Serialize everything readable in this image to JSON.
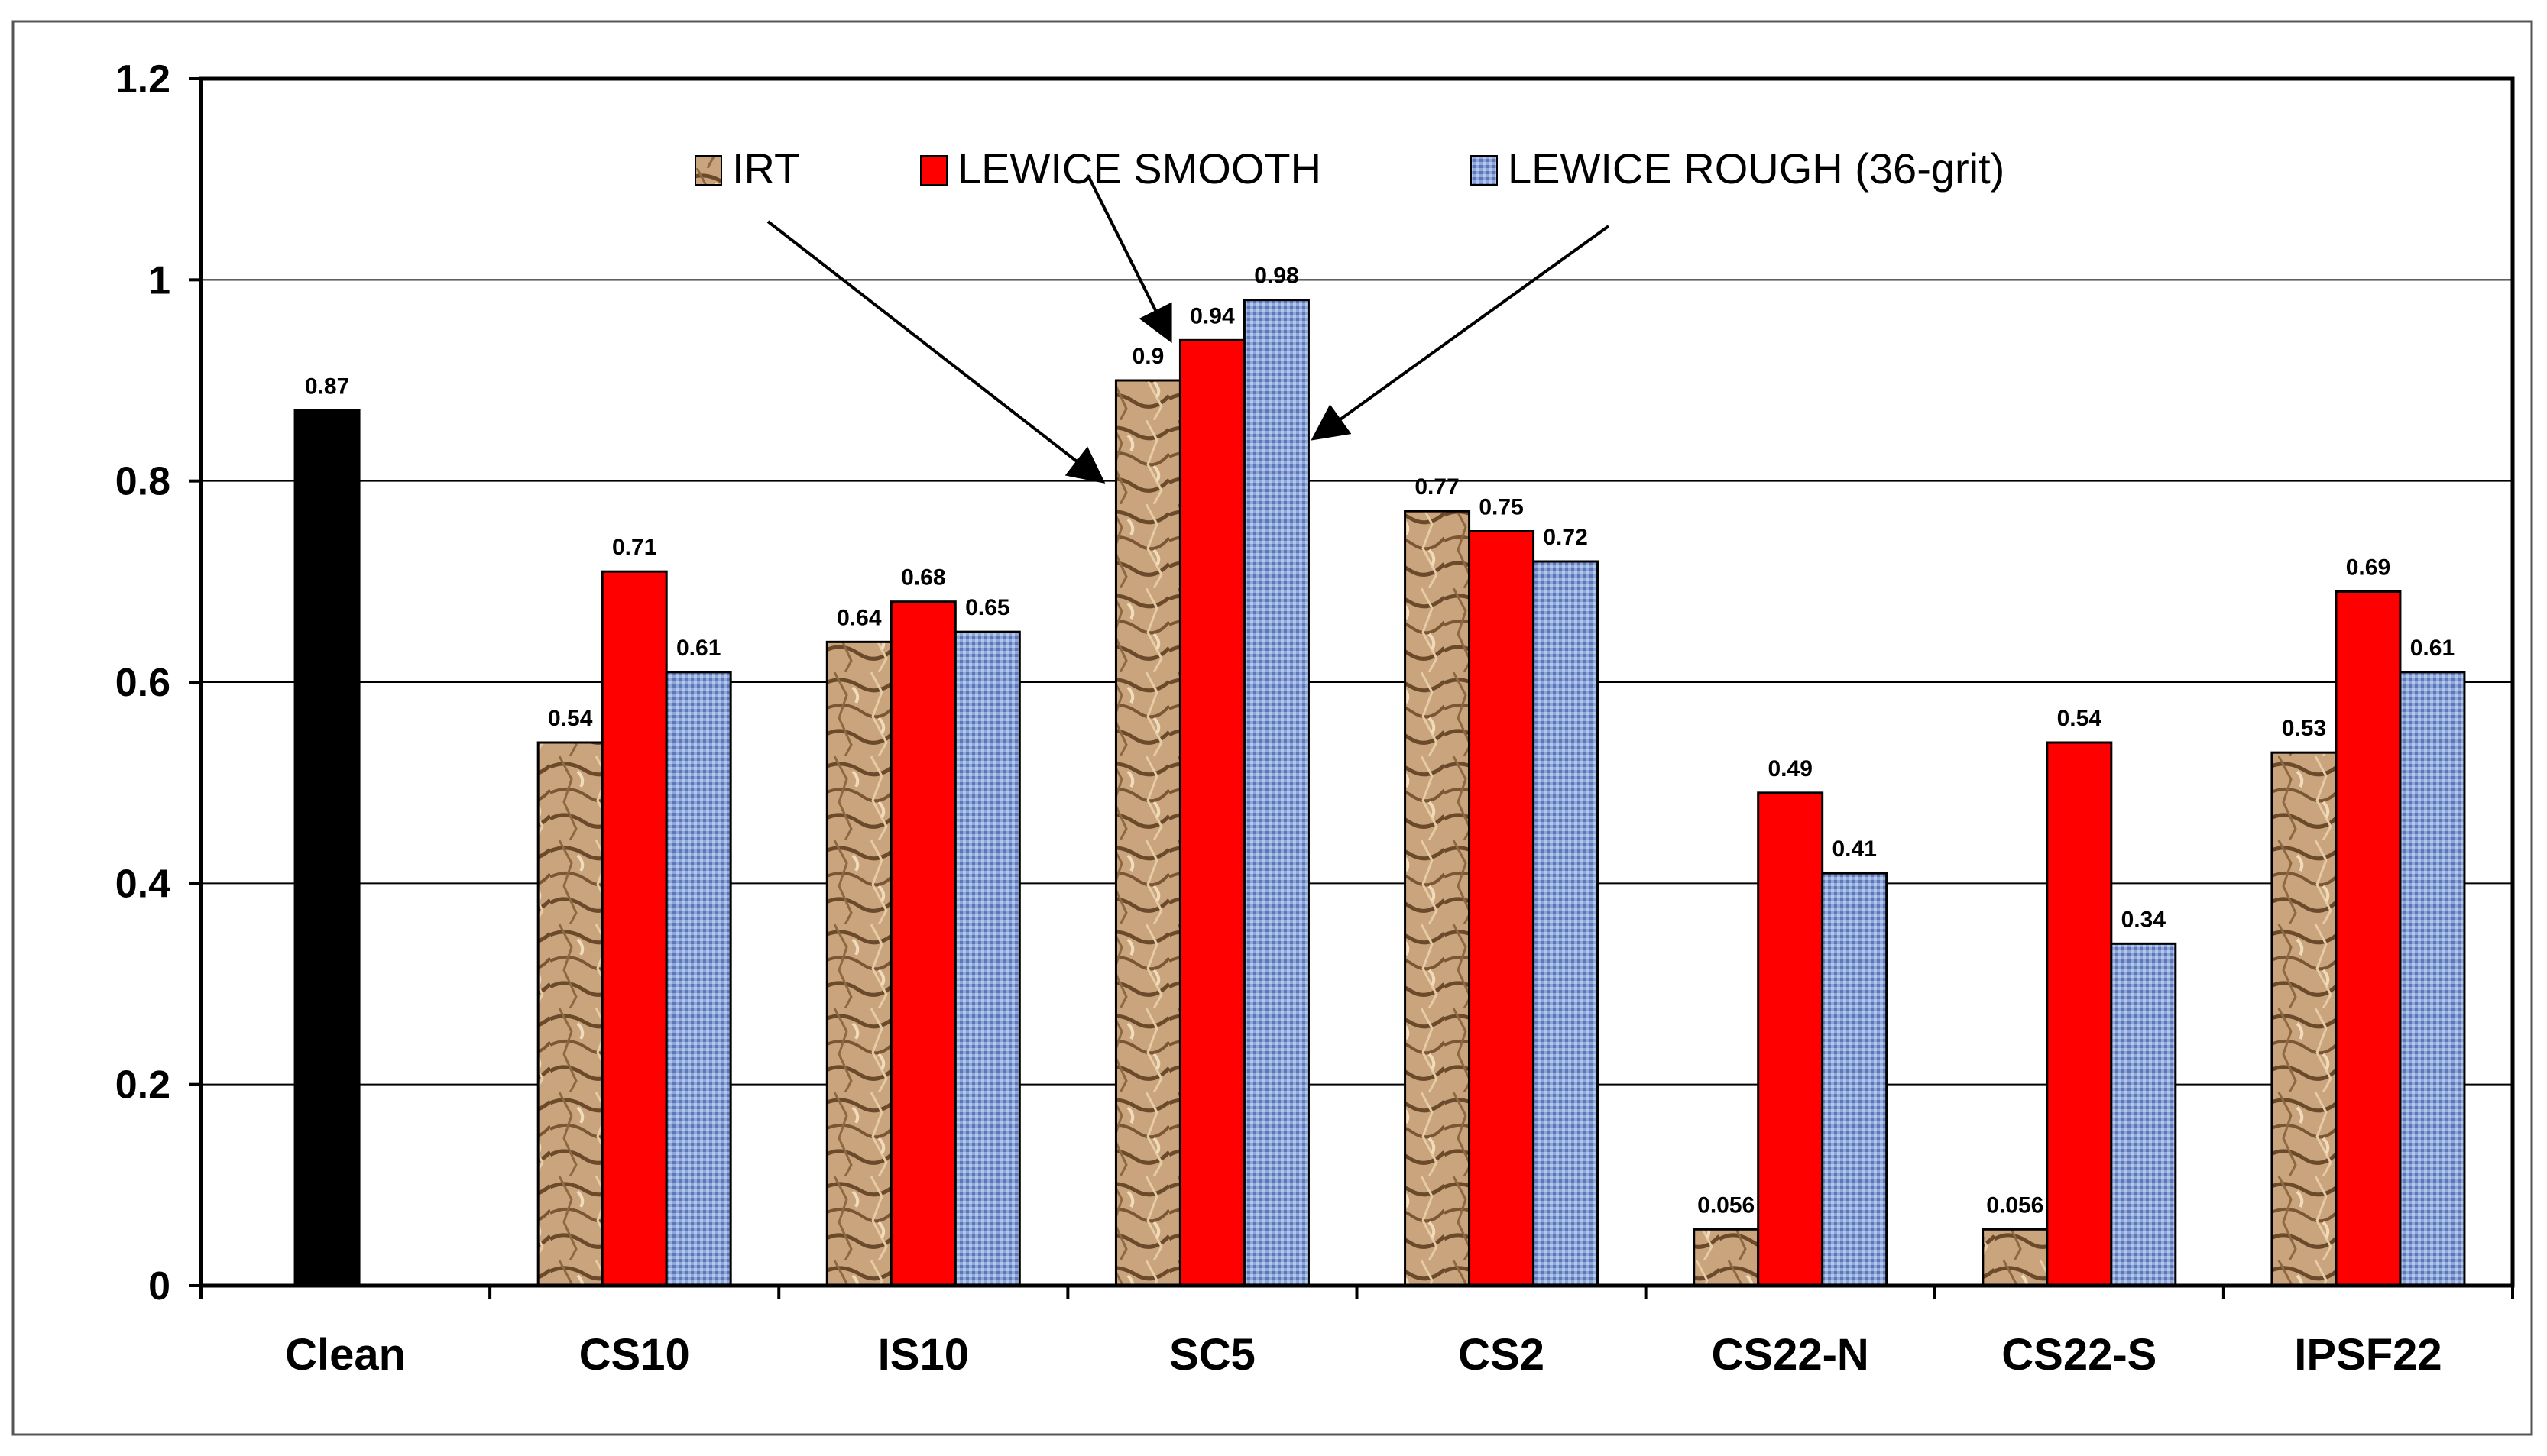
{
  "chart_data": {
    "type": "bar",
    "title": "",
    "xlabel": "",
    "ylabel": "",
    "ylim": [
      0,
      1.2
    ],
    "yticks": [
      "0",
      "0.2",
      "0.4",
      "0.6",
      "0.8",
      "1",
      "1.2"
    ],
    "categories": [
      "Clean",
      "CS10",
      "IS10",
      "SC5",
      "CS2",
      "CS22-N",
      "CS22-S",
      "IPSF22"
    ],
    "clean_bar": {
      "category": "Clean",
      "value": 0.87,
      "label": "0.87",
      "color": "#000000"
    },
    "series": [
      {
        "name": "IRT",
        "color": "#c8a27a",
        "values": [
          null,
          0.54,
          0.64,
          0.9,
          0.77,
          0.056,
          0.056,
          0.53
        ],
        "labels": [
          null,
          "0.54",
          "0.64",
          "0.9",
          "0.77",
          "0.056",
          "0.056",
          "0.53"
        ]
      },
      {
        "name": "LEWICE SMOOTH",
        "color": "#ff0000",
        "values": [
          null,
          0.71,
          0.68,
          0.94,
          0.75,
          0.49,
          0.54,
          0.69
        ],
        "labels": [
          null,
          "0.71",
          "0.68",
          "0.94",
          "0.75",
          "0.49",
          "0.54",
          "0.69"
        ]
      },
      {
        "name": "LEWICE ROUGH (36-grit)",
        "color": "#8fa9d9",
        "values": [
          null,
          0.61,
          0.65,
          0.98,
          0.72,
          0.41,
          0.34,
          0.61
        ],
        "labels": [
          null,
          "0.61",
          "0.65",
          "0.98",
          "0.72",
          "0.41",
          "0.34",
          "0.61"
        ]
      }
    ],
    "legend": [
      "IRT",
      "LEWICE SMOOTH",
      "LEWICE ROUGH (36-grit)"
    ],
    "legend_position": "top-center",
    "annotations": "arrows from each legend entry to the SC5 bars",
    "grid": true
  }
}
